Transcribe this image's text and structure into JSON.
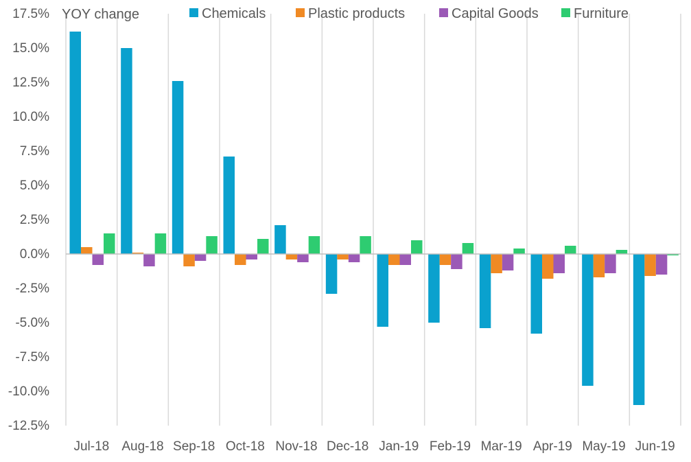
{
  "chart_data": {
    "type": "bar",
    "title": "",
    "xlabel": "",
    "ylabel": "YOY change",
    "ylim": [
      -12.5,
      17.5
    ],
    "yticks": [
      17.5,
      15.0,
      12.5,
      10.0,
      7.5,
      5.0,
      2.5,
      0.0,
      -2.5,
      -5.0,
      -7.5,
      -10.0,
      -12.5
    ],
    "ytick_labels": [
      "17.5%",
      "15.0%",
      "12.5%",
      "10.0%",
      "7.5%",
      "5.0%",
      "2.5%",
      "0.0%",
      "-2.5%",
      "-5.0%",
      "-7.5%",
      "-10.0%",
      "-12.5%"
    ],
    "categories": [
      "Jul-18",
      "Aug-18",
      "Sep-18",
      "Oct-18",
      "Nov-18",
      "Dec-18",
      "Jan-19",
      "Feb-19",
      "Mar-19",
      "Apr-19",
      "May-19",
      "Jun-19"
    ],
    "grid": false,
    "legend": "top",
    "series": [
      {
        "name": "Chemicals",
        "color": "#0AA1CE",
        "values": [
          16.2,
          15.0,
          12.6,
          7.1,
          2.1,
          -2.9,
          -5.3,
          -5.0,
          -5.4,
          -5.8,
          -9.6,
          -11.0
        ]
      },
      {
        "name": "Plastic products",
        "color": "#F08A24",
        "values": [
          0.5,
          0.1,
          -0.9,
          -0.8,
          -0.4,
          -0.4,
          -0.8,
          -0.8,
          -1.4,
          -1.8,
          -1.7,
          -1.6
        ]
      },
      {
        "name": "Capital Goods",
        "color": "#9B59B6",
        "values": [
          -0.8,
          -0.9,
          -0.5,
          -0.4,
          -0.6,
          -0.6,
          -0.8,
          -1.1,
          -1.2,
          -1.4,
          -1.4,
          -1.5
        ]
      },
      {
        "name": "Furniture",
        "color": "#2ECC71",
        "values": [
          1.5,
          1.5,
          1.3,
          1.1,
          1.3,
          1.3,
          1.0,
          0.8,
          0.4,
          0.6,
          0.3,
          -0.1
        ]
      }
    ]
  }
}
